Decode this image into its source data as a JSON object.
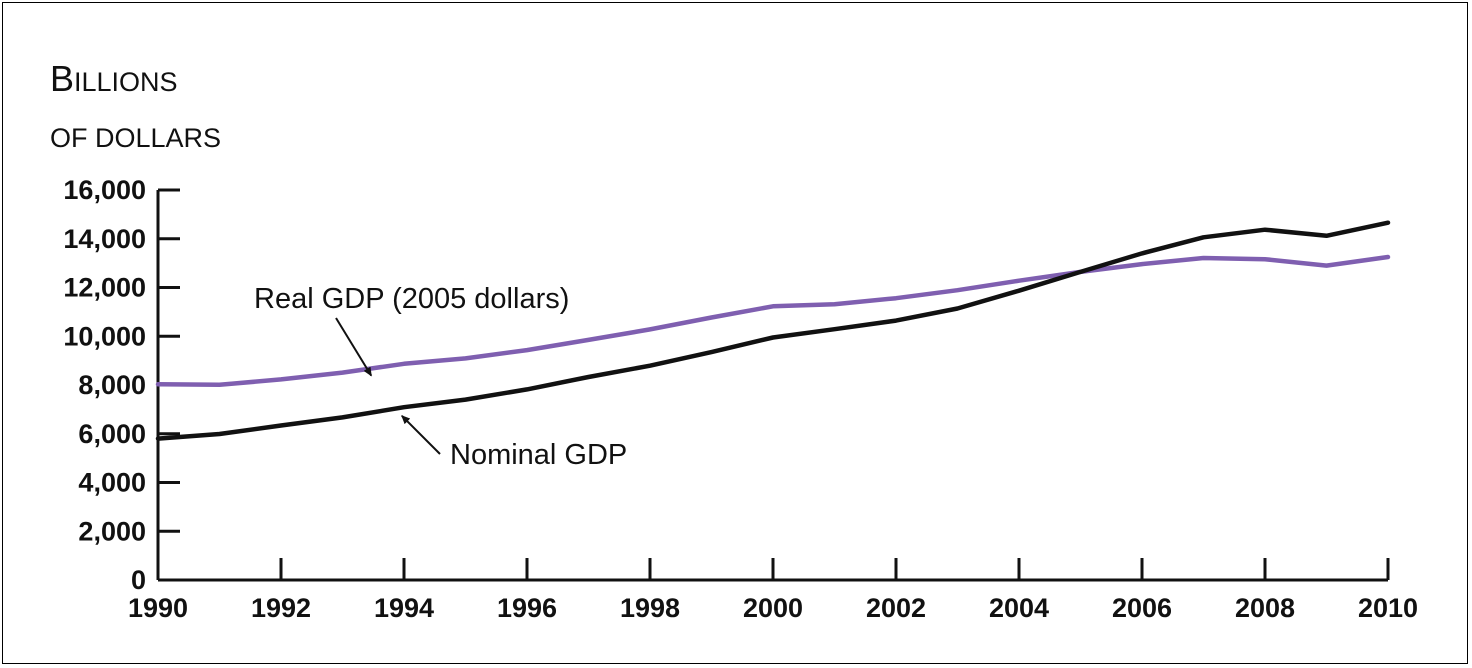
{
  "chart_data": {
    "type": "line",
    "ylabel_line1_first": "B",
    "ylabel_line1_rest": "ILLIONS",
    "ylabel_line2": "OF DOLLARS",
    "xlim": [
      1990,
      2010
    ],
    "ylim": [
      0,
      16000
    ],
    "x_ticks": [
      "1990",
      "1992",
      "1994",
      "1996",
      "1998",
      "2000",
      "2002",
      "2004",
      "2006",
      "2008",
      "2010"
    ],
    "y_ticks": [
      "0",
      "2,000",
      "4,000",
      "6,000",
      "8,000",
      "10,000",
      "12,000",
      "14,000",
      "16,000"
    ],
    "grid": false,
    "series": [
      {
        "name": "Real GDP (2005 dollars)",
        "color": "#7f5fb0",
        "x": [
          1990,
          1991,
          1992,
          1993,
          1994,
          1995,
          1996,
          1997,
          1998,
          1999,
          2000,
          2001,
          2002,
          2003,
          2004,
          2005,
          2006,
          2007,
          2008,
          2009,
          2010
        ],
        "values": [
          8030,
          8010,
          8230,
          8510,
          8870,
          9090,
          9430,
          9850,
          10280,
          10770,
          11230,
          11310,
          11560,
          11890,
          12280,
          12640,
          12960,
          13210,
          13160,
          12900,
          13250
        ]
      },
      {
        "name": "Nominal GDP",
        "color": "#111111",
        "x": [
          1990,
          1991,
          1992,
          1993,
          1994,
          1995,
          1996,
          1997,
          1998,
          1999,
          2000,
          2001,
          2002,
          2003,
          2004,
          2005,
          2006,
          2007,
          2008,
          2009,
          2010
        ],
        "values": [
          5800,
          5990,
          6340,
          6670,
          7090,
          7400,
          7820,
          8330,
          8790,
          9350,
          9950,
          10290,
          10640,
          11140,
          11870,
          12640,
          13400,
          14060,
          14370,
          14120,
          14660
        ]
      }
    ]
  }
}
